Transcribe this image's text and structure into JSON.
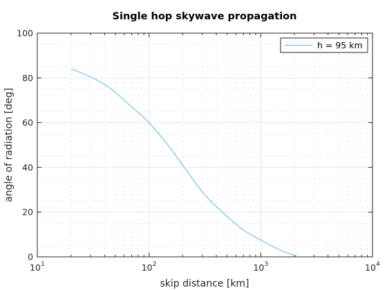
{
  "chart_data": {
    "type": "line",
    "title": "Single hop skywave propagation",
    "xlabel": "skip distance [km]",
    "ylabel": "angle of radiation [deg]",
    "x_scale": "log",
    "xlim": [
      10,
      10000
    ],
    "ylim": [
      0,
      100
    ],
    "x_ticks": [
      {
        "base": "10",
        "exp": "1",
        "value": 10
      },
      {
        "base": "10",
        "exp": "2",
        "value": 100
      },
      {
        "base": "10",
        "exp": "3",
        "value": 1000
      },
      {
        "base": "10",
        "exp": "4",
        "value": 10000
      }
    ],
    "y_ticks": [
      "0",
      "20",
      "40",
      "60",
      "80",
      "100"
    ],
    "grid": true,
    "minor_grid": true,
    "legend_position": "top-right",
    "series": [
      {
        "name": "h = 95 km",
        "color": "#5fb4e6",
        "x": [
          20,
          30,
          40,
          50,
          70,
          100,
          150,
          200,
          300,
          400,
          500,
          700,
          1000,
          1500,
          2000,
          2150
        ],
        "y": [
          84,
          80.5,
          77,
          73.5,
          67,
          60,
          49.5,
          41,
          29,
          22.5,
          18,
          12,
          7.5,
          3,
          0.7,
          0
        ]
      }
    ]
  }
}
